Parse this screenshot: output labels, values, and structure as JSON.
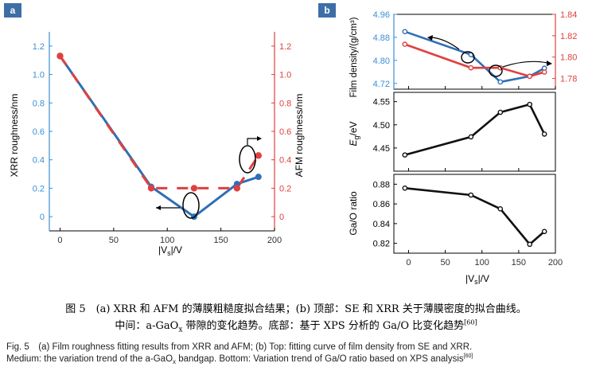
{
  "panels": {
    "a_label": "a",
    "b_label": "b"
  },
  "colors": {
    "blue": "#2f6fb5",
    "red": "#e0403f",
    "black": "#111111",
    "axis_blue": "#3a8fd6"
  },
  "chart_data": [
    {
      "id": "a",
      "type": "line",
      "xlabel_parts": [
        "|V",
        "s",
        "|/V"
      ],
      "ylabel_left": "XRR roughness/nm",
      "ylabel_right": "AFM roughness/nm",
      "xlim": [
        -10,
        200
      ],
      "ylim": [
        -0.1,
        1.3
      ],
      "xticks": [
        0,
        50,
        100,
        150,
        200
      ],
      "yticks": [
        0,
        0.2,
        0.4,
        0.6,
        0.8,
        1.0,
        1.2
      ],
      "ytick_labels_left": [
        "0",
        "0.2",
        "0.4",
        "0.6",
        "0.8",
        "1.0",
        "1.2"
      ],
      "ytick_labels_right": [
        "0",
        "0.2",
        "0.4",
        "0.6",
        "0.8",
        "1.0",
        "1.2"
      ],
      "series": [
        {
          "name": "XRR",
          "color": "#2f6fb5",
          "x": [
            0,
            85,
            125,
            165,
            185
          ],
          "y": [
            1.13,
            0.21,
            0.0,
            0.23,
            0.28
          ]
        },
        {
          "name": "AFM",
          "color": "#e0403f",
          "x": [
            0,
            85,
            125,
            165,
            185
          ],
          "y": [
            1.13,
            0.2,
            0.2,
            0.2,
            0.43
          ]
        }
      ]
    },
    {
      "id": "b-top",
      "type": "line",
      "ylabel_left": "Film density/(g/cm³)",
      "ylim_left": [
        4.7,
        4.96
      ],
      "yticks_left": [
        4.72,
        4.8,
        4.88,
        4.96
      ],
      "ytick_labels_left": [
        "4.72",
        "4.80",
        "4.88",
        "4.96"
      ],
      "ylim_right": [
        1.77,
        1.84
      ],
      "yticks_right": [
        1.78,
        1.8,
        1.82,
        1.84
      ],
      "ytick_labels_right": [
        "1.78",
        "1.80",
        "1.82",
        "1.84"
      ],
      "xlim": [
        -20,
        200
      ],
      "series": [
        {
          "name": "XRR density",
          "axis": "left",
          "color": "#2f6fb5",
          "x": [
            -5,
            85,
            125,
            165,
            185
          ],
          "y": [
            4.9,
            4.82,
            4.725,
            4.745,
            4.773
          ]
        },
        {
          "name": "SE",
          "axis": "right",
          "color": "#e0403f",
          "x": [
            -5,
            85,
            125,
            165,
            185
          ],
          "y": [
            1.812,
            1.79,
            1.79,
            1.782,
            1.786
          ]
        }
      ]
    },
    {
      "id": "b-mid",
      "type": "line",
      "ylabel_parts": [
        "E",
        "g",
        "/eV"
      ],
      "ylim": [
        4.4,
        4.57
      ],
      "yticks": [
        4.45,
        4.5,
        4.55
      ],
      "ytick_labels": [
        "4.45",
        "4.50",
        "4.55"
      ],
      "xlim": [
        -20,
        200
      ],
      "series": [
        {
          "name": "bandgap",
          "color": "#111111",
          "x": [
            -5,
            85,
            125,
            165,
            185
          ],
          "y": [
            4.435,
            4.474,
            4.527,
            4.544,
            4.48
          ]
        }
      ]
    },
    {
      "id": "b-bot",
      "type": "line",
      "ylabel": "Ga/O ratio",
      "xlabel_parts": [
        "|V",
        "s",
        "|/V"
      ],
      "ylim": [
        0.81,
        0.89
      ],
      "yticks": [
        0.82,
        0.84,
        0.86,
        0.88
      ],
      "ytick_labels": [
        "0.82",
        "0.84",
        "0.86",
        "0.88"
      ],
      "xlim": [
        -20,
        200
      ],
      "xticks": [
        0,
        50,
        100,
        150,
        200
      ],
      "series": [
        {
          "name": "Ga/O",
          "color": "#111111",
          "x": [
            -5,
            85,
            125,
            165,
            185
          ],
          "y": [
            0.876,
            0.869,
            0.855,
            0.819,
            0.832
          ]
        }
      ]
    }
  ],
  "caption": {
    "zh_line1": "图 5　(a) XRR 和 AFM 的薄膜粗糙度拟合结果；(b) 顶部：SE 和 XRR 关于薄膜密度的拟合曲线。",
    "zh_line2_a": "中间：a-GaO",
    "zh_line2_sub": "x",
    "zh_line2_b": " 带隙的变化趋势。底部：基于 XPS 分析的 Ga/O 比变化趋势",
    "zh_ref": "[60]",
    "en_line1": "Fig. 5　(a) Film roughness fitting results from XRR and AFM; (b) Top: fitting curve of film density from SE and XRR.",
    "en_line2_a": "Medium: the variation trend of the a-GaO",
    "en_line2_sub": "x",
    "en_line2_b": " bandgap. Bottom: Variation trend of Ga/O ratio based on XPS analysis",
    "en_ref": "[60]"
  }
}
